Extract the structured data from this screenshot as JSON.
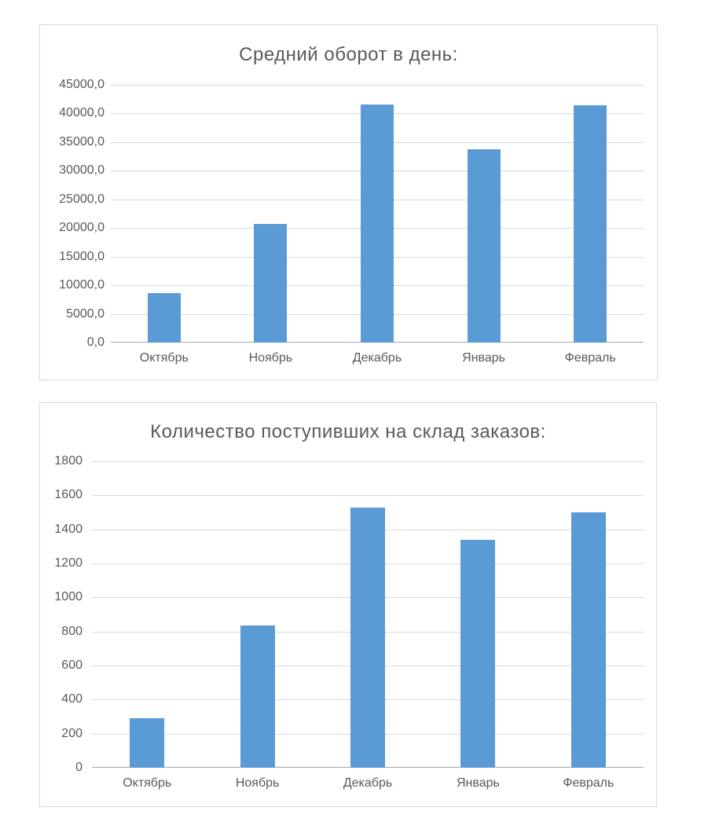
{
  "page": {
    "background": "#ffffff"
  },
  "chart_data": [
    {
      "type": "bar",
      "title": "Средний оборот в день:",
      "categories": [
        "Октябрь",
        "Ноябрь",
        "Декабрь",
        "Январь",
        "Февраль"
      ],
      "values": [
        8700,
        20700,
        41600,
        33800,
        41500
      ],
      "xlabel": "",
      "ylabel": "",
      "ylim": [
        0,
        45000
      ],
      "ytick_step": 5000,
      "yticks_top_to_bottom": [
        "45000,0",
        "40000,0",
        "35000,0",
        "30000,0",
        "25000,0",
        "20000,0",
        "15000,0",
        "10000,0",
        "5000,0",
        "0,0"
      ],
      "grid": true,
      "legend": false,
      "bar_color": "#5B9BD5",
      "gridline_color": "#D9D9D9",
      "axis_line_color": "#A6A6A6",
      "text_color": "#595959"
    },
    {
      "type": "bar",
      "title": "Количество поступивших на склад заказов:",
      "categories": [
        "Октябрь",
        "Ноябрь",
        "Декабрь",
        "Январь",
        "Февраль"
      ],
      "values": [
        290,
        835,
        1530,
        1340,
        1500
      ],
      "xlabel": "",
      "ylabel": "",
      "ylim": [
        0,
        1800
      ],
      "ytick_step": 200,
      "yticks_top_to_bottom": [
        "1800",
        "1600",
        "1400",
        "1200",
        "1000",
        "800",
        "600",
        "400",
        "200",
        "0"
      ],
      "grid": true,
      "legend": false,
      "bar_color": "#5B9BD5",
      "gridline_color": "#D9D9D9",
      "axis_line_color": "#A6A6A6",
      "text_color": "#595959"
    }
  ]
}
